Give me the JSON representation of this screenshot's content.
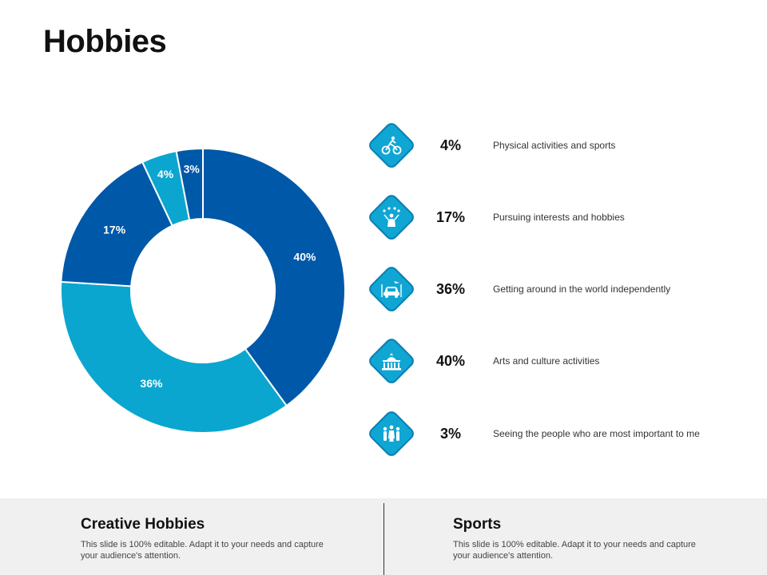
{
  "title": "Hobbies",
  "colors": {
    "dark_blue": "#0058a8",
    "light_blue": "#0aa6cf",
    "icon_fill": "#10a6d4"
  },
  "chart_data": {
    "type": "pie",
    "title": "",
    "slices": [
      {
        "label": "40%",
        "value": 40,
        "color": "#0058a8"
      },
      {
        "label": "36%",
        "value": 36,
        "color": "#0aa6cf"
      },
      {
        "label": "17%",
        "value": 17,
        "color": "#0058a8"
      },
      {
        "label": "4%",
        "value": 4,
        "color": "#0aa6cf"
      },
      {
        "label": "3%",
        "value": 3,
        "color": "#0058a8"
      }
    ]
  },
  "legend": [
    {
      "value": "4%",
      "text": "Physical activities and sports",
      "icon": "cyclist-icon"
    },
    {
      "value": "17%",
      "text": "Pursuing interests and hobbies",
      "icon": "juggler-icon"
    },
    {
      "value": "36%",
      "text": "Getting around in the world independently",
      "icon": "car-travel-icon"
    },
    {
      "value": "40%",
      "text": "Arts and culture activities",
      "icon": "museum-icon"
    },
    {
      "value": "3%",
      "text": "Seeing the people who are most important to me",
      "icon": "family-icon"
    }
  ],
  "footer": {
    "left": {
      "title": "Creative Hobbies",
      "body": "This slide is 100% editable. Adapt it to your needs and capture your audience's attention."
    },
    "right": {
      "title": "Sports",
      "body": "This slide is 100% editable. Adapt it to your needs and capture your audience's attention."
    }
  }
}
